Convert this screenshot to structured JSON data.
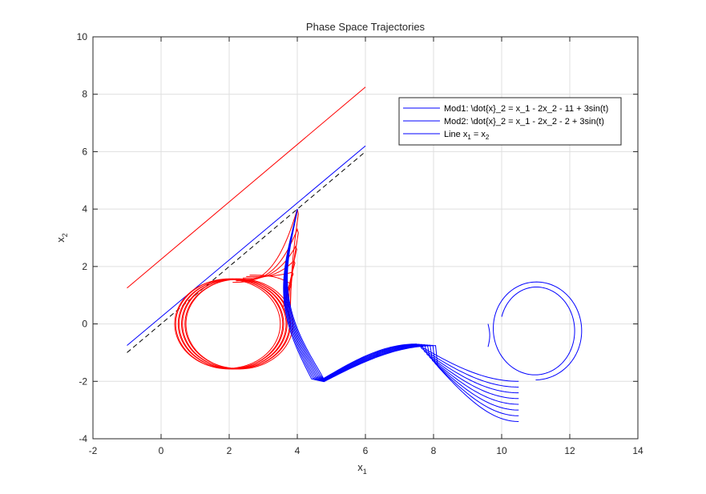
{
  "chart_data": {
    "type": "line",
    "title": "Phase Space Trajectories",
    "xlabel": "x",
    "xlabel_sub": "1",
    "ylabel": "x",
    "ylabel_sub": "2",
    "xlim": [
      -2,
      14
    ],
    "ylim": [
      -4,
      10
    ],
    "xticks": [
      -2,
      0,
      2,
      4,
      6,
      8,
      10,
      12,
      14
    ],
    "yticks": [
      -4,
      -2,
      0,
      2,
      4,
      6,
      8,
      10
    ],
    "grid": true,
    "legend_position": "top-right",
    "legend": [
      {
        "label": "Mod1: \\dot{x}_2 = x_1 - 2x_2 - 11 + 3sin(t)",
        "color": "#0000ff"
      },
      {
        "label": "Mod2: \\dot{x}_2 = x_1 - 2x_2 - 2 + 3sin(t)",
        "color": "#0000ff"
      },
      {
        "label_main": "Line x",
        "label_sub1": "1",
        "label_mid": " = x",
        "label_sub2": "2",
        "color": "#0000ff"
      }
    ],
    "lines": [
      {
        "name": "red-line",
        "color": "#ff0000",
        "x": [
          -1,
          6
        ],
        "y": [
          1.25,
          8.25
        ]
      },
      {
        "name": "blue-line",
        "color": "#0000ff",
        "x": [
          -1,
          6
        ],
        "y": [
          -0.75,
          6.2
        ]
      },
      {
        "name": "black-dashed-line",
        "color": "#000000",
        "dashed": true,
        "x": [
          -1,
          6
        ],
        "y": [
          -1,
          6
        ]
      }
    ],
    "red_trajectory": {
      "color": "#ff0000",
      "loops": 8,
      "centers_x": [
        1.95,
        2.0,
        2.05,
        2.1,
        2.15,
        2.2,
        2.25,
        2.3
      ],
      "center_y": 0,
      "radius_x": 1.55,
      "radius_y": 1.55,
      "spike_tips": [
        [
          4.0,
          4.0
        ],
        [
          4.0,
          3.3
        ],
        [
          3.95,
          2.7
        ],
        [
          3.9,
          2.2
        ],
        [
          3.85,
          1.8
        ],
        [
          3.8,
          1.4
        ]
      ]
    },
    "blue_trajectory": {
      "color": "#0000ff",
      "start": [
        4.0,
        4.0
      ],
      "mid_trough": [
        5.0,
        -2.0
      ],
      "peak": [
        7.5,
        -0.7
      ],
      "spiral_center": [
        11.0,
        0.0
      ],
      "spiral_end": [
        9.7,
        -0.8
      ],
      "spiral_max_x": 12.4,
      "spiral_top_y": 1.45,
      "spiral_bottom_y": -2.0
    }
  }
}
